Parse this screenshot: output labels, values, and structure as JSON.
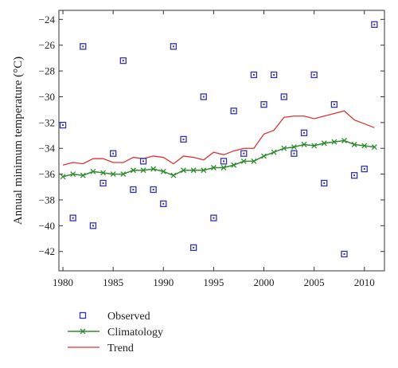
{
  "chart_data": {
    "type": "line",
    "ylabel": "Annual minimum temperature (°C)",
    "xlabel": "",
    "xlim": [
      1979.6,
      2012.0
    ],
    "ylim": [
      -43.5,
      -23.3
    ],
    "x_ticks": [
      1980,
      1985,
      1990,
      1995,
      2000,
      2005,
      2010
    ],
    "y_ticks": [
      -24,
      -26,
      -28,
      -30,
      -32,
      -34,
      -36,
      -38,
      -40,
      -42
    ],
    "grid": false,
    "legend_position": "bottom-left",
    "colors": {
      "observed": "#3333aa",
      "climatology": "#2e8b2e",
      "trend": "#dd3333"
    },
    "series": [
      {
        "name": "Observed",
        "style": "square-markers",
        "x": [
          1980,
          1981,
          1982,
          1983,
          1984,
          1985,
          1986,
          1987,
          1988,
          1989,
          1990,
          1991,
          1992,
          1993,
          1994,
          1995,
          1996,
          1997,
          1998,
          1999,
          2000,
          2001,
          2002,
          2003,
          2004,
          2005,
          2006,
          2007,
          2008,
          2009,
          2010,
          2011
        ],
        "y": [
          -32.2,
          -39.4,
          -26.1,
          -40.0,
          -36.7,
          -34.4,
          -27.2,
          -37.2,
          -35.0,
          -37.2,
          -38.3,
          -26.1,
          -33.3,
          -41.7,
          -30.0,
          -39.4,
          -35.0,
          -31.1,
          -34.4,
          -28.3,
          -30.6,
          -28.3,
          -30.0,
          -34.4,
          -32.8,
          -28.3,
          -36.7,
          -30.6,
          -42.2,
          -36.1,
          -35.6,
          -24.4
        ]
      },
      {
        "name": "Climatology",
        "style": "line-with-x-markers",
        "x": [
          1980,
          1981,
          1982,
          1983,
          1984,
          1985,
          1986,
          1987,
          1988,
          1989,
          1990,
          1991,
          1992,
          1993,
          1994,
          1995,
          1996,
          1997,
          1998,
          1999,
          2000,
          2001,
          2002,
          2003,
          2004,
          2005,
          2006,
          2007,
          2008,
          2009,
          2010,
          2011
        ],
        "y": [
          -36.2,
          -36.0,
          -36.1,
          -35.8,
          -35.9,
          -36.0,
          -36.0,
          -35.7,
          -35.7,
          -35.6,
          -35.8,
          -36.1,
          -35.7,
          -35.7,
          -35.7,
          -35.5,
          -35.5,
          -35.3,
          -35.0,
          -35.0,
          -34.6,
          -34.3,
          -34.0,
          -33.9,
          -33.7,
          -33.8,
          -33.6,
          -33.5,
          -33.4,
          -33.7,
          -33.8,
          -33.9
        ]
      },
      {
        "name": "Trend",
        "style": "line",
        "x": [
          1980,
          1981,
          1982,
          1983,
          1984,
          1985,
          1986,
          1987,
          1988,
          1989,
          1990,
          1991,
          1992,
          1993,
          1994,
          1995,
          1996,
          1997,
          1998,
          1999,
          2000,
          2001,
          2002,
          2003,
          2004,
          2005,
          2006,
          2007,
          2008,
          2009,
          2010,
          2011
        ],
        "y": [
          -35.3,
          -35.1,
          -35.2,
          -34.8,
          -34.8,
          -35.1,
          -35.1,
          -34.7,
          -34.8,
          -34.6,
          -34.7,
          -35.2,
          -34.6,
          -34.7,
          -34.9,
          -34.3,
          -34.5,
          -34.2,
          -34.0,
          -34.0,
          -32.9,
          -32.6,
          -31.6,
          -31.5,
          -31.5,
          -31.7,
          -31.5,
          -31.3,
          -31.1,
          -31.8,
          -32.1,
          -32.4
        ]
      }
    ]
  }
}
